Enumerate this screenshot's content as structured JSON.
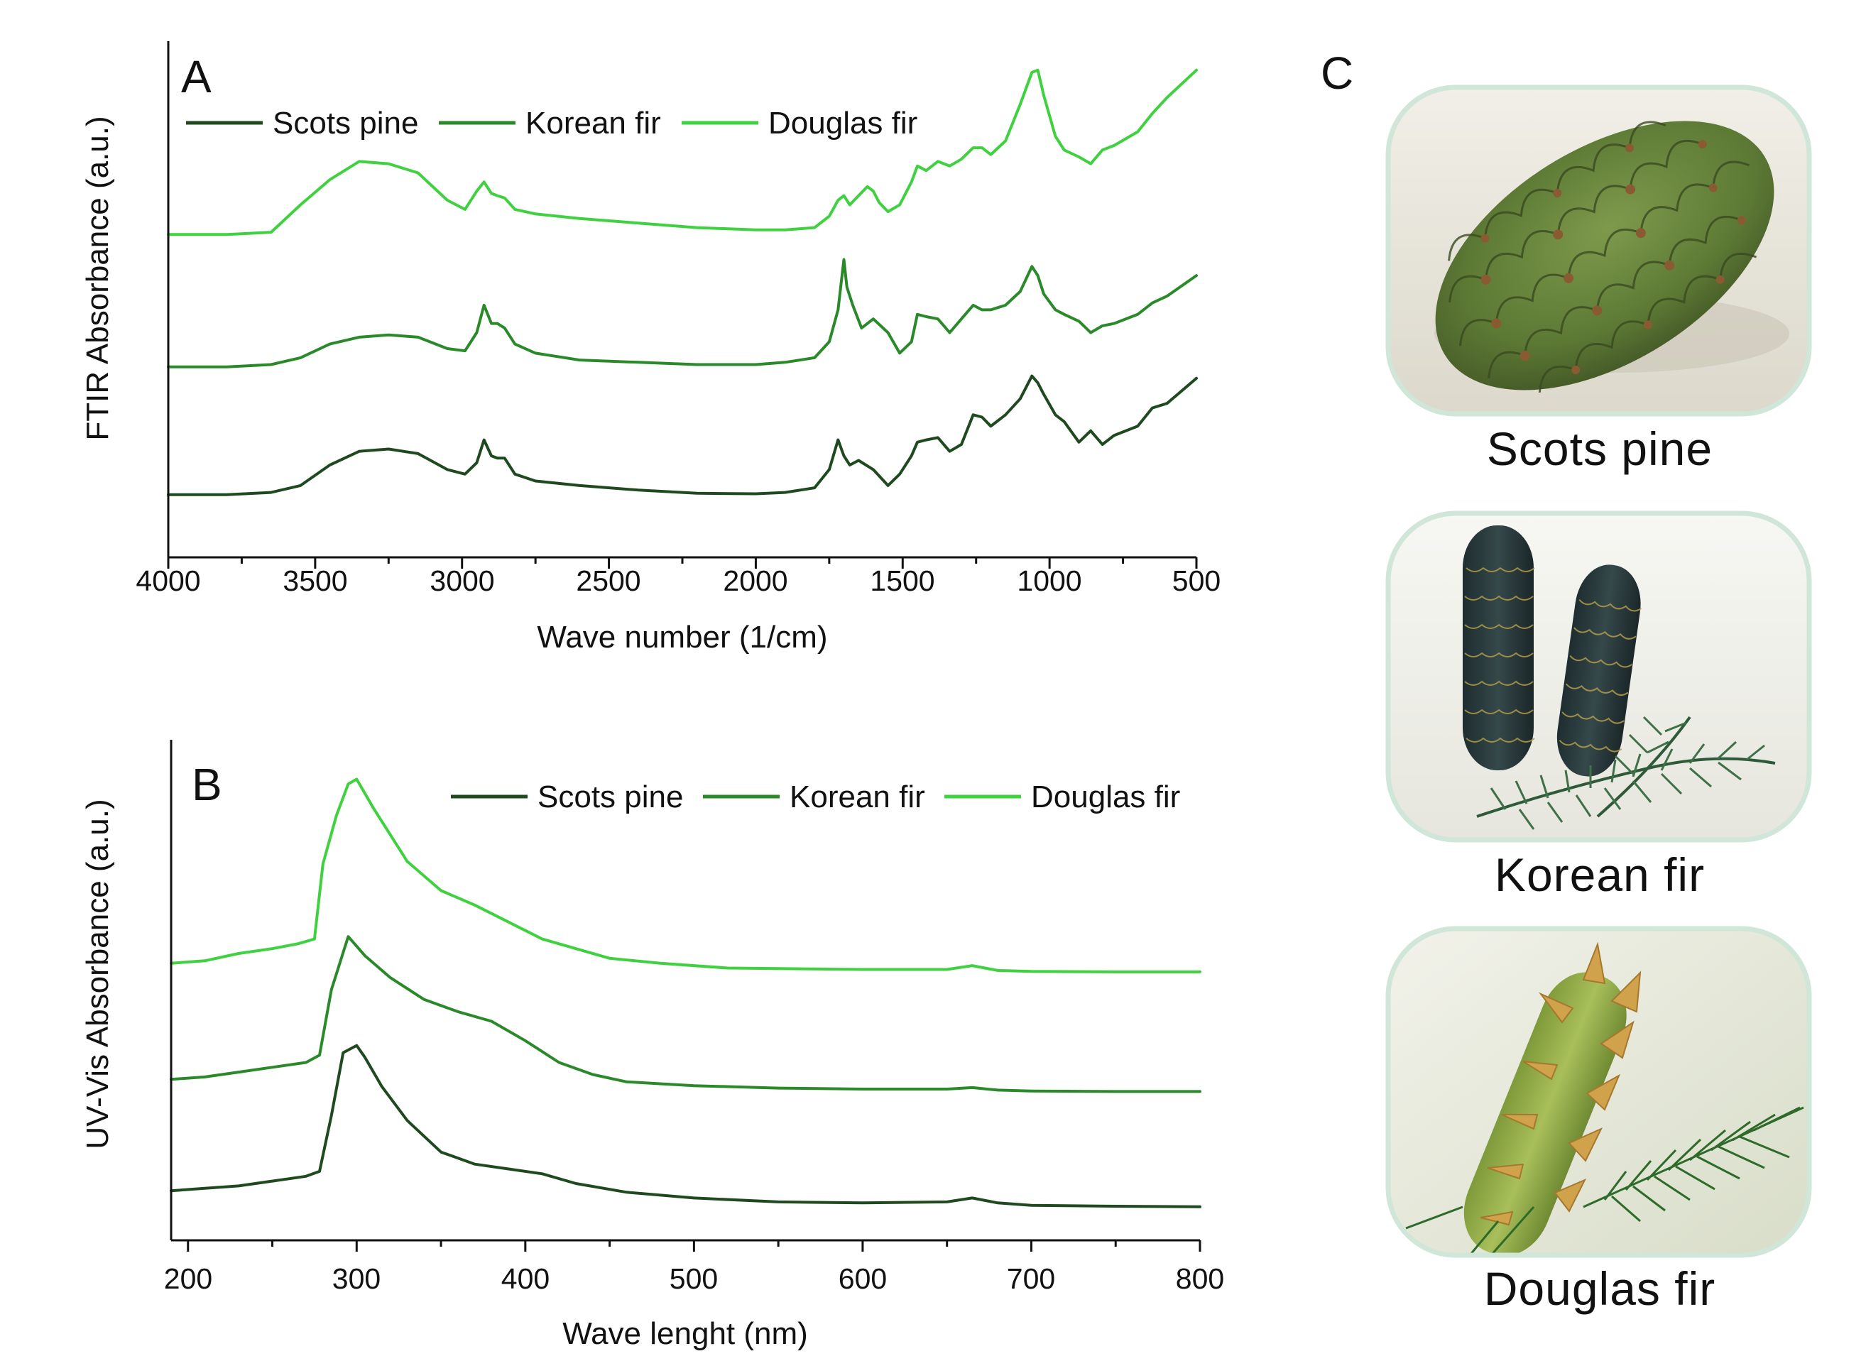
{
  "colors": {
    "scots_pine": "#1f4a1f",
    "korean_fir": "#2a8a2a",
    "douglas_fir": "#3fd13f",
    "axis": "#111111",
    "photo_border": "#cfe6d9"
  },
  "chart_data": [
    {
      "id": "A",
      "panel_label": "A",
      "type": "line",
      "xlabel": "Wave number (1/cm)",
      "ylabel": "FTIR Absorbance (a.u.)",
      "xlim": [
        4000,
        500
      ],
      "ylim": [
        0,
        10
      ],
      "x_ticks": [
        "4000",
        "3500",
        "3000",
        "2500",
        "2000",
        "1500",
        "1000",
        "500"
      ],
      "legend": [
        "Scots pine",
        "Korean fir",
        "Douglas fir"
      ],
      "series": [
        {
          "name": "Scots pine",
          "x": [
            4000,
            3800,
            3650,
            3550,
            3450,
            3350,
            3250,
            3150,
            3050,
            2990,
            2950,
            2925,
            2900,
            2880,
            2855,
            2820,
            2750,
            2600,
            2400,
            2200,
            2000,
            1900,
            1800,
            1750,
            1720,
            1700,
            1680,
            1650,
            1600,
            1550,
            1510,
            1470,
            1450,
            1420,
            1380,
            1340,
            1300,
            1260,
            1230,
            1200,
            1150,
            1100,
            1060,
            1040,
            1020,
            980,
            950,
            900,
            860,
            820,
            780,
            700,
            650,
            600,
            500
          ],
          "y": [
            0.75,
            0.75,
            0.8,
            0.95,
            1.4,
            1.7,
            1.75,
            1.65,
            1.3,
            1.2,
            1.45,
            1.95,
            1.6,
            1.55,
            1.55,
            1.2,
            1.05,
            0.95,
            0.85,
            0.78,
            0.77,
            0.8,
            0.9,
            1.3,
            1.95,
            1.6,
            1.4,
            1.5,
            1.3,
            0.95,
            1.2,
            1.6,
            1.9,
            1.95,
            2.0,
            1.7,
            1.85,
            2.5,
            2.45,
            2.25,
            2.5,
            2.85,
            3.35,
            3.2,
            2.95,
            2.5,
            2.35,
            1.9,
            2.15,
            1.85,
            2.05,
            2.25,
            2.65,
            2.75,
            3.3
          ]
        },
        {
          "name": "Korean fir",
          "x": [
            4000,
            3800,
            3650,
            3550,
            3450,
            3350,
            3250,
            3150,
            3050,
            2990,
            2950,
            2925,
            2900,
            2880,
            2855,
            2820,
            2750,
            2600,
            2400,
            2200,
            2000,
            1900,
            1800,
            1750,
            1720,
            1700,
            1690,
            1670,
            1640,
            1600,
            1550,
            1510,
            1470,
            1450,
            1420,
            1380,
            1340,
            1300,
            1260,
            1230,
            1200,
            1150,
            1100,
            1060,
            1040,
            1020,
            980,
            950,
            900,
            860,
            820,
            780,
            700,
            650,
            600,
            500
          ],
          "y": [
            3.55,
            3.55,
            3.6,
            3.75,
            4.05,
            4.2,
            4.25,
            4.2,
            3.95,
            3.9,
            4.3,
            4.9,
            4.5,
            4.5,
            4.4,
            4.05,
            3.85,
            3.7,
            3.65,
            3.6,
            3.6,
            3.65,
            3.75,
            4.1,
            4.8,
            5.9,
            5.3,
            4.9,
            4.4,
            4.6,
            4.3,
            3.85,
            4.1,
            4.7,
            4.65,
            4.6,
            4.3,
            4.6,
            4.9,
            4.8,
            4.8,
            4.9,
            5.2,
            5.75,
            5.55,
            5.15,
            4.8,
            4.7,
            4.55,
            4.3,
            4.45,
            4.5,
            4.7,
            4.95,
            5.1,
            5.55
          ]
        },
        {
          "name": "Douglas fir",
          "x": [
            4000,
            3800,
            3650,
            3550,
            3450,
            3350,
            3250,
            3150,
            3050,
            2990,
            2950,
            2925,
            2900,
            2880,
            2855,
            2820,
            2750,
            2600,
            2400,
            2200,
            2000,
            1900,
            1800,
            1750,
            1720,
            1700,
            1680,
            1650,
            1620,
            1600,
            1580,
            1550,
            1510,
            1470,
            1450,
            1420,
            1380,
            1340,
            1300,
            1260,
            1230,
            1200,
            1150,
            1100,
            1060,
            1040,
            1020,
            980,
            950,
            900,
            860,
            820,
            780,
            700,
            650,
            600,
            500
          ],
          "y": [
            6.45,
            6.45,
            6.5,
            7.1,
            7.65,
            8.05,
            8.0,
            7.8,
            7.2,
            7.0,
            7.4,
            7.6,
            7.35,
            7.3,
            7.25,
            7.0,
            6.9,
            6.8,
            6.7,
            6.6,
            6.55,
            6.55,
            6.6,
            6.85,
            7.2,
            7.3,
            7.1,
            7.3,
            7.5,
            7.4,
            7.15,
            6.95,
            7.1,
            7.6,
            7.95,
            7.85,
            8.05,
            7.95,
            8.1,
            8.35,
            8.35,
            8.2,
            8.5,
            9.3,
            10.0,
            10.05,
            9.5,
            8.6,
            8.3,
            8.15,
            8.0,
            8.3,
            8.4,
            8.7,
            9.1,
            9.45,
            10.05
          ]
        }
      ]
    },
    {
      "id": "B",
      "panel_label": "B",
      "type": "line",
      "xlabel": "Wave lenght (nm)",
      "ylabel": "UV-Vis Absorbance (a.u.)",
      "xlim": [
        190,
        800
      ],
      "ylim": [
        0,
        10
      ],
      "x_ticks": [
        "200",
        "300",
        "400",
        "500",
        "600",
        "700",
        "800"
      ],
      "legend": [
        "Scots pine",
        "Korean fir",
        "Douglas fir"
      ],
      "series": [
        {
          "name": "Scots pine",
          "x": [
            190,
            210,
            230,
            250,
            270,
            278,
            285,
            292,
            300,
            305,
            315,
            330,
            350,
            370,
            390,
            410,
            430,
            460,
            500,
            550,
            600,
            650,
            665,
            680,
            700,
            750,
            800
          ],
          "y": [
            0.95,
            1.0,
            1.05,
            1.15,
            1.25,
            1.35,
            2.5,
            3.8,
            3.95,
            3.7,
            3.1,
            2.4,
            1.75,
            1.5,
            1.4,
            1.3,
            1.1,
            0.92,
            0.8,
            0.72,
            0.7,
            0.72,
            0.8,
            0.7,
            0.65,
            0.63,
            0.62
          ]
        },
        {
          "name": "Korean fir",
          "x": [
            190,
            210,
            230,
            250,
            270,
            278,
            285,
            295,
            305,
            320,
            340,
            360,
            380,
            400,
            420,
            440,
            460,
            500,
            550,
            600,
            650,
            665,
            680,
            700,
            750,
            800
          ],
          "y": [
            3.25,
            3.3,
            3.4,
            3.5,
            3.6,
            3.75,
            5.1,
            6.2,
            5.8,
            5.35,
            4.9,
            4.65,
            4.45,
            4.05,
            3.6,
            3.35,
            3.2,
            3.12,
            3.07,
            3.05,
            3.05,
            3.08,
            3.03,
            3.01,
            3.0,
            3.0
          ]
        },
        {
          "name": "Douglas fir",
          "x": [
            190,
            210,
            230,
            250,
            265,
            275,
            280,
            288,
            295,
            300,
            310,
            330,
            350,
            370,
            390,
            410,
            430,
            450,
            480,
            520,
            600,
            650,
            665,
            680,
            700,
            750,
            800
          ],
          "y": [
            5.65,
            5.7,
            5.85,
            5.95,
            6.05,
            6.15,
            7.7,
            8.7,
            9.35,
            9.45,
            8.85,
            7.75,
            7.15,
            6.85,
            6.5,
            6.15,
            5.95,
            5.75,
            5.65,
            5.55,
            5.52,
            5.52,
            5.6,
            5.5,
            5.48,
            5.47,
            5.47
          ]
        }
      ]
    }
  ],
  "panel_c": {
    "label": "C",
    "photos": [
      {
        "caption": "Scots pine"
      },
      {
        "caption": "Korean fir"
      },
      {
        "caption": "Douglas fir"
      }
    ]
  }
}
